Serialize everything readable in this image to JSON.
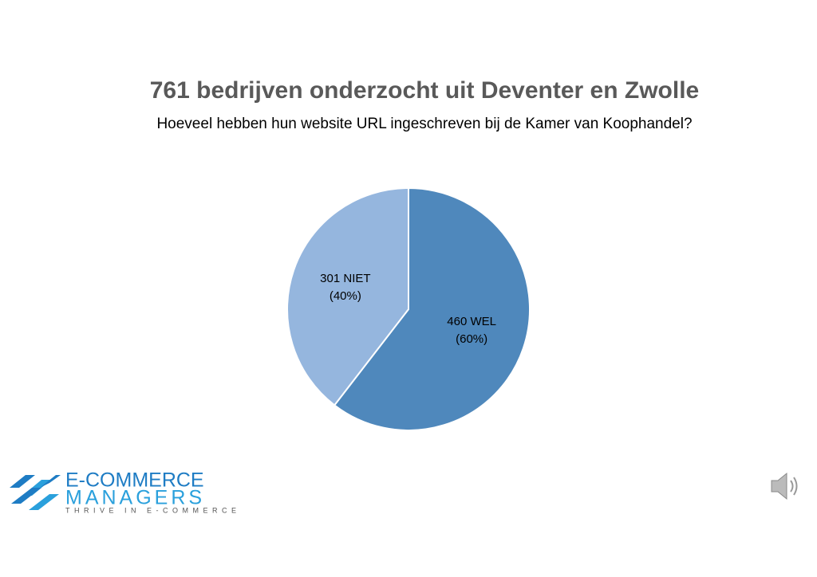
{
  "chart_data": {
    "type": "pie",
    "title": "761 bedrijven onderzocht uit Deventer en Zwolle",
    "subtitle": "Hoeveel hebben hun website URL ingeschreven bij de Kamer van Koophandel?",
    "categories": [
      "WEL",
      "NIET"
    ],
    "values": [
      460,
      301
    ],
    "value_labels": [
      [
        "460 WEL",
        "(60%)"
      ],
      [
        "301 NIET",
        "(40%)"
      ]
    ],
    "colors": [
      "#4f88bc",
      "#95b6de"
    ]
  },
  "logo": {
    "name_top": "E-COMMERCE",
    "name_bottom": "MANAGERS",
    "tagline": "THRIVE IN E-COMMERCE"
  }
}
